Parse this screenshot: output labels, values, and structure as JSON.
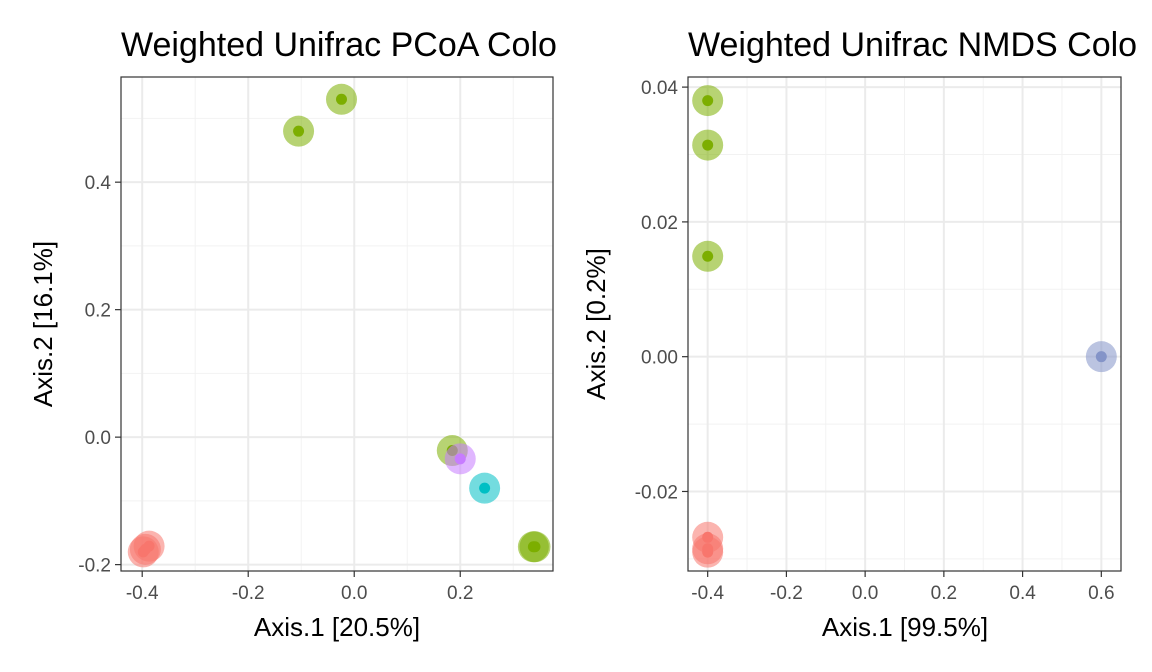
{
  "chart_data": [
    {
      "type": "scatter",
      "title": "Weighted Unifrac PCoA Colo",
      "xlabel": "Axis.1   [20.5%]",
      "ylabel": "Axis.2   [16.1%]",
      "xlim": [
        -0.44,
        0.375
      ],
      "ylim": [
        -0.21,
        0.565
      ],
      "xticks": [
        -0.4,
        -0.2,
        0.0,
        0.2
      ],
      "xtick_labels": [
        "-0.4",
        "-0.2",
        "0.0",
        "0.2"
      ],
      "yticks": [
        -0.2,
        0.0,
        0.2,
        0.4
      ],
      "ytick_labels": [
        "-0.2",
        "0.0",
        "0.2",
        "0.4"
      ],
      "grid": true,
      "points": [
        {
          "x": -0.024,
          "y": 0.53,
          "color": "#7cae00"
        },
        {
          "x": -0.105,
          "y": 0.48,
          "color": "#7cae00"
        },
        {
          "x": 0.185,
          "y": -0.021,
          "color": "#7cae00"
        },
        {
          "x": 0.2,
          "y": -0.034,
          "color": "#c77cff"
        },
        {
          "x": 0.246,
          "y": -0.08,
          "color": "#00bfc4"
        },
        {
          "x": 0.341,
          "y": -0.172,
          "color": "#7cae00"
        },
        {
          "x": 0.338,
          "y": -0.172,
          "color": "#7cae00"
        },
        {
          "x": -0.387,
          "y": -0.171,
          "color": "#f8766d"
        },
        {
          "x": -0.398,
          "y": -0.18,
          "color": "#f8766d"
        },
        {
          "x": -0.394,
          "y": -0.176,
          "color": "#f8766d"
        }
      ]
    },
    {
      "type": "scatter",
      "title": "Weighted Unifrac NMDS Colo",
      "xlabel": "Axis.1   [99.5%]",
      "ylabel": "Axis.2   [0.2%]",
      "xlim": [
        -0.45,
        0.65
      ],
      "ylim": [
        -0.0318,
        0.0415
      ],
      "xticks": [
        -0.4,
        -0.2,
        0.0,
        0.2,
        0.4,
        0.6
      ],
      "xtick_labels": [
        "-0.4",
        "-0.2",
        "0.0",
        "0.2",
        "0.4",
        "0.6"
      ],
      "yticks": [
        -0.02,
        0.0,
        0.02,
        0.04
      ],
      "ytick_labels": [
        "-0.02",
        "0.00",
        "0.02",
        "0.04"
      ],
      "grid": true,
      "points": [
        {
          "x": -0.4,
          "y": 0.038,
          "color": "#7cae00"
        },
        {
          "x": -0.4,
          "y": 0.0314,
          "color": "#7cae00"
        },
        {
          "x": -0.4,
          "y": 0.0149,
          "color": "#7cae00"
        },
        {
          "x": 0.6,
          "y": 0.0,
          "color": "#8494c8"
        },
        {
          "x": -0.4,
          "y": -0.0268,
          "color": "#f8766d"
        },
        {
          "x": -0.4,
          "y": -0.0285,
          "color": "#f8766d"
        },
        {
          "x": -0.4,
          "y": -0.029,
          "color": "#f8766d"
        }
      ]
    }
  ]
}
